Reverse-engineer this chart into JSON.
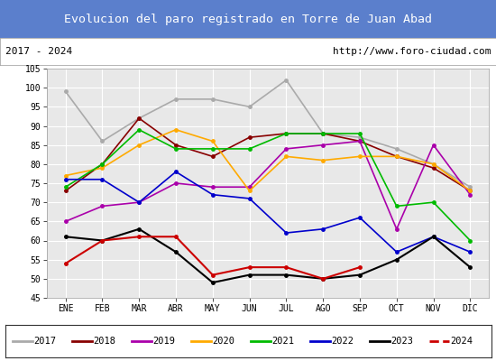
{
  "title": "Evolucion del paro registrado en Torre de Juan Abad",
  "title_bg": "#5b7fcc",
  "subtitle_left": "2017 - 2024",
  "subtitle_right": "http://www.foro-ciudad.com",
  "months": [
    "ENE",
    "FEB",
    "MAR",
    "ABR",
    "MAY",
    "JUN",
    "JUL",
    "AGO",
    "SEP",
    "OCT",
    "NOV",
    "DIC"
  ],
  "ylim": [
    45,
    105
  ],
  "yticks": [
    45,
    50,
    55,
    60,
    65,
    70,
    75,
    80,
    85,
    90,
    95,
    100,
    105
  ],
  "series": {
    "2017": {
      "color": "#aaaaaa",
      "lw": 1.2,
      "data": [
        99,
        86,
        92,
        97,
        97,
        95,
        102,
        88,
        87,
        84,
        80,
        74
      ]
    },
    "2018": {
      "color": "#880000",
      "lw": 1.2,
      "data": [
        73,
        80,
        92,
        85,
        82,
        87,
        88,
        88,
        86,
        82,
        79,
        73
      ]
    },
    "2019": {
      "color": "#aa00aa",
      "lw": 1.2,
      "data": [
        65,
        69,
        70,
        75,
        74,
        74,
        84,
        85,
        86,
        63,
        85,
        72
      ]
    },
    "2020": {
      "color": "#ffaa00",
      "lw": 1.2,
      "data": [
        77,
        79,
        85,
        89,
        86,
        73,
        82,
        81,
        82,
        82,
        80,
        73
      ]
    },
    "2021": {
      "color": "#00bb00",
      "lw": 1.2,
      "data": [
        74,
        80,
        89,
        84,
        84,
        84,
        88,
        88,
        88,
        69,
        70,
        60
      ]
    },
    "2022": {
      "color": "#0000cc",
      "lw": 1.2,
      "data": [
        76,
        76,
        70,
        78,
        72,
        71,
        62,
        63,
        66,
        57,
        61,
        57
      ]
    },
    "2023": {
      "color": "#000000",
      "lw": 1.5,
      "data": [
        61,
        60,
        63,
        57,
        49,
        51,
        51,
        50,
        51,
        55,
        61,
        53
      ]
    },
    "2024": {
      "color": "#cc0000",
      "lw": 1.5,
      "data": [
        54,
        60,
        61,
        61,
        51,
        53,
        53,
        50,
        53,
        null,
        null,
        null
      ]
    }
  }
}
